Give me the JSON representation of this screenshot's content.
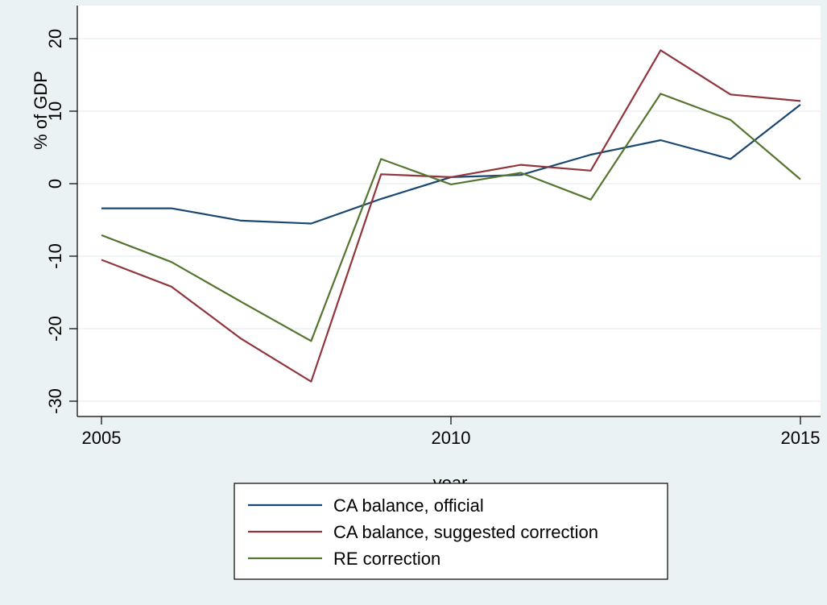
{
  "chart_data": {
    "type": "line",
    "title": "",
    "xlabel": "year",
    "ylabel": "% of GDP",
    "xlim": [
      2005,
      2015
    ],
    "ylim": [
      -30,
      20
    ],
    "x_ticks": [
      2005,
      2010,
      2015
    ],
    "y_ticks": [
      -30,
      -20,
      -10,
      0,
      10,
      20
    ],
    "grid": "horizontal",
    "legend_position": "bottom",
    "x": [
      2005,
      2006,
      2007,
      2008,
      2009,
      2010,
      2011,
      2012,
      2013,
      2014,
      2015
    ],
    "series": [
      {
        "name": "CA balance, official",
        "color": "#1a476f",
        "values": [
          -3.4,
          -3.4,
          -5.1,
          -5.5,
          -2.1,
          0.9,
          1.2,
          4.0,
          6.0,
          3.4,
          10.9
        ]
      },
      {
        "name": "CA balance, suggested correction",
        "color": "#90353b",
        "values": [
          -10.5,
          -14.2,
          -21.4,
          -27.3,
          1.3,
          0.9,
          2.6,
          1.8,
          18.4,
          12.3,
          11.4
        ]
      },
      {
        "name": "RE correction",
        "color": "#55752f",
        "values": [
          -7.1,
          -10.8,
          -16.3,
          -21.7,
          3.4,
          -0.1,
          1.5,
          -2.2,
          12.4,
          8.8,
          0.6
        ]
      }
    ]
  },
  "colors": {
    "outer_background": "#eaf2f3",
    "plot_background": "#ffffff",
    "gridline": "#eaf2f3"
  }
}
